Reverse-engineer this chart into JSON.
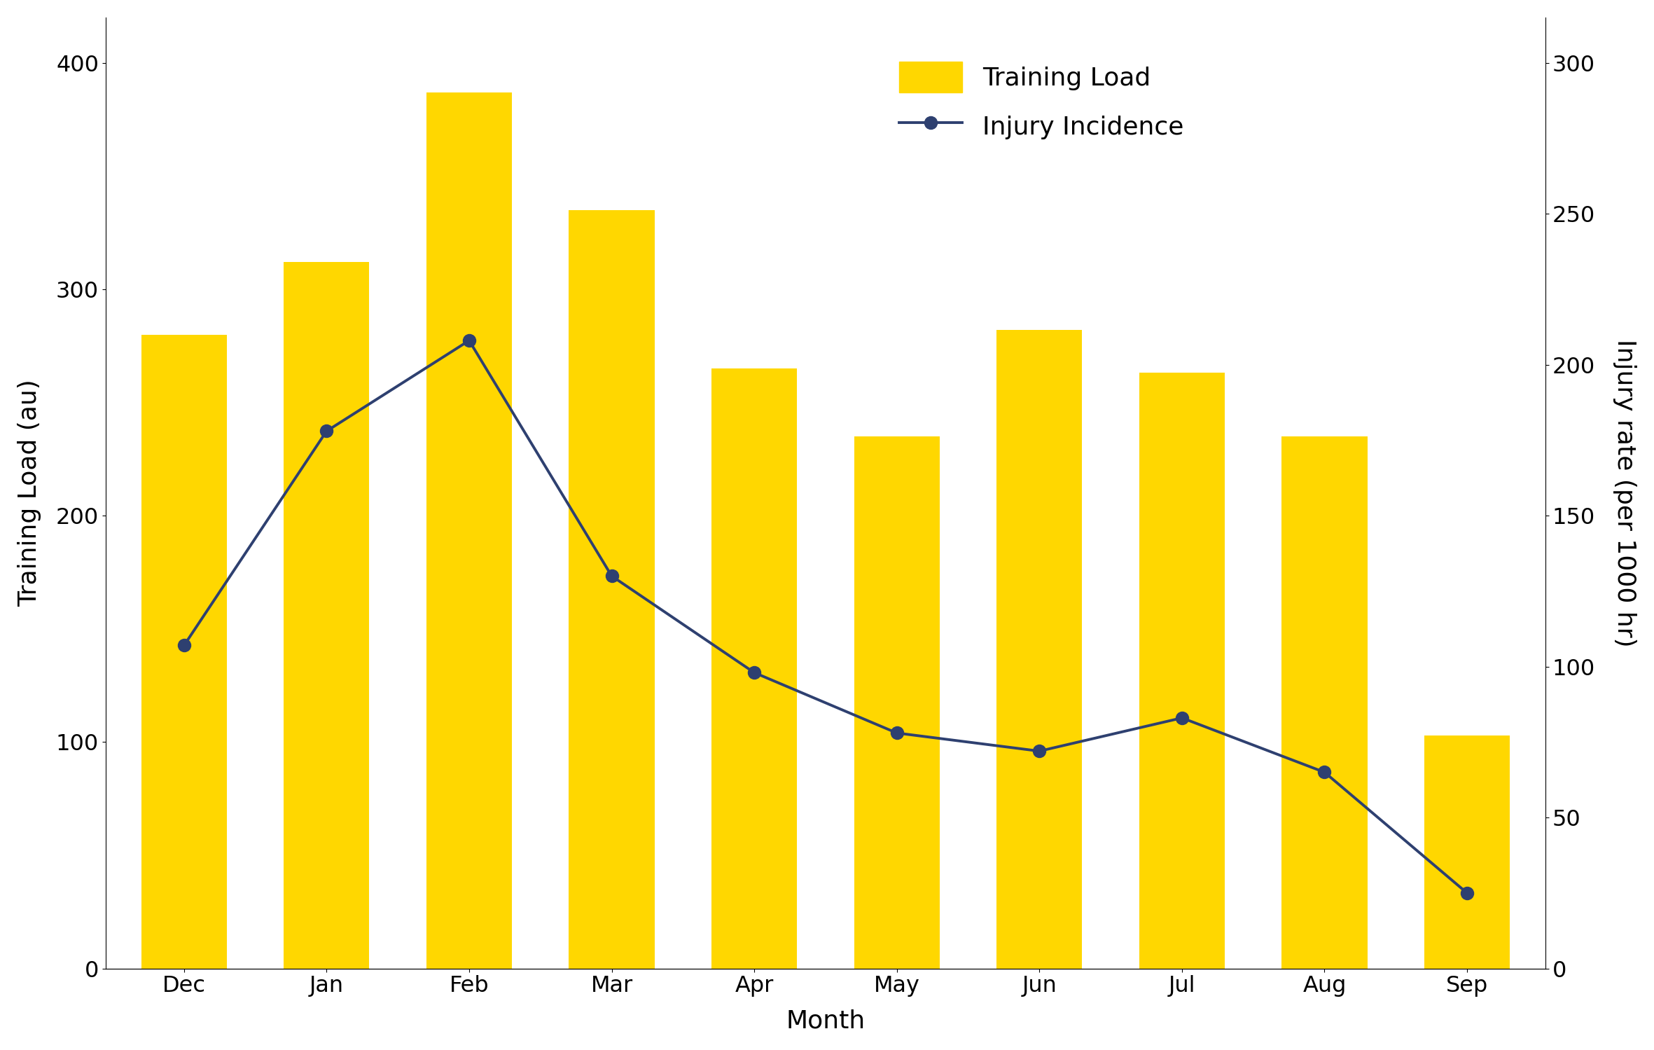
{
  "months": [
    "Dec",
    "Jan",
    "Feb",
    "Mar",
    "Apr",
    "May",
    "Jun",
    "Jul",
    "Aug",
    "Sep"
  ],
  "training_load": [
    280,
    312,
    387,
    335,
    265,
    235,
    282,
    263,
    235,
    103
  ],
  "injury_incidence": [
    107,
    178,
    208,
    130,
    98,
    78,
    72,
    83,
    65,
    25
  ],
  "bar_color": "#FFD700",
  "line_color": "#2E4070",
  "ylabel_left": "Training Load (au)",
  "ylabel_right": "Injury rate (per 1000 hr)",
  "xlabel": "Month",
  "legend_bar": "Training Load",
  "legend_line": "Injury Incidence",
  "ylim_left": [
    0,
    420
  ],
  "ylim_right": [
    0,
    315
  ],
  "yticks_left": [
    0,
    100,
    200,
    300,
    400
  ],
  "yticks_right": [
    0,
    50,
    100,
    150,
    200,
    250,
    300
  ],
  "background_color": "#ffffff",
  "label_fontsize": 26,
  "tick_fontsize": 23,
  "legend_fontsize": 26,
  "line_width": 2.8,
  "marker_size": 13,
  "bar_width": 0.6
}
